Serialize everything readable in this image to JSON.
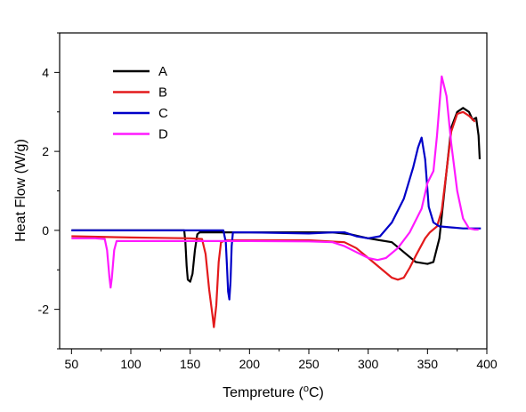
{
  "chart_data": {
    "type": "line",
    "title": "",
    "xlabel_main": "Tempreture (",
    "xlabel_sup": "o",
    "xlabel_unit": "C)",
    "ylabel": "Heat Flow (W/g)",
    "xlim": [
      40,
      400
    ],
    "ylim": [
      -3,
      5
    ],
    "xticks": [
      50,
      100,
      150,
      200,
      250,
      300,
      350,
      400
    ],
    "yticks": [
      -2,
      0,
      2,
      4
    ],
    "grid": false,
    "legend_position": "top-left",
    "series": [
      {
        "name": "A",
        "color": "#000000",
        "points": [
          [
            50,
            0.0
          ],
          [
            100,
            0.0
          ],
          [
            140,
            0.0
          ],
          [
            145,
            0.0
          ],
          [
            146,
            -0.3
          ],
          [
            147,
            -0.9
          ],
          [
            148,
            -1.25
          ],
          [
            150,
            -1.3
          ],
          [
            152,
            -1.1
          ],
          [
            154,
            -0.5
          ],
          [
            156,
            -0.1
          ],
          [
            158,
            -0.05
          ],
          [
            170,
            -0.05
          ],
          [
            200,
            -0.05
          ],
          [
            250,
            -0.05
          ],
          [
            270,
            -0.05
          ],
          [
            285,
            -0.1
          ],
          [
            300,
            -0.2
          ],
          [
            310,
            -0.25
          ],
          [
            320,
            -0.3
          ],
          [
            330,
            -0.55
          ],
          [
            340,
            -0.8
          ],
          [
            350,
            -0.85
          ],
          [
            355,
            -0.8
          ],
          [
            360,
            -0.2
          ],
          [
            365,
            1.2
          ],
          [
            370,
            2.6
          ],
          [
            375,
            3.0
          ],
          [
            380,
            3.1
          ],
          [
            385,
            3.0
          ],
          [
            388,
            2.8
          ],
          [
            391,
            2.85
          ],
          [
            393,
            2.4
          ],
          [
            394,
            1.8
          ]
        ]
      },
      {
        "name": "B",
        "color": "#e31a1c",
        "points": [
          [
            50,
            -0.15
          ],
          [
            100,
            -0.18
          ],
          [
            150,
            -0.2
          ],
          [
            160,
            -0.22
          ],
          [
            163,
            -0.6
          ],
          [
            166,
            -1.5
          ],
          [
            169,
            -2.2
          ],
          [
            170,
            -2.45
          ],
          [
            172,
            -1.9
          ],
          [
            174,
            -0.8
          ],
          [
            176,
            -0.3
          ],
          [
            180,
            -0.25
          ],
          [
            200,
            -0.25
          ],
          [
            250,
            -0.25
          ],
          [
            280,
            -0.3
          ],
          [
            290,
            -0.45
          ],
          [
            300,
            -0.7
          ],
          [
            310,
            -0.95
          ],
          [
            320,
            -1.2
          ],
          [
            325,
            -1.25
          ],
          [
            330,
            -1.2
          ],
          [
            335,
            -0.95
          ],
          [
            340,
            -0.65
          ],
          [
            348,
            -0.2
          ],
          [
            352,
            -0.05
          ],
          [
            358,
            0.1
          ],
          [
            362,
            0.5
          ],
          [
            366,
            1.5
          ],
          [
            370,
            2.5
          ],
          [
            375,
            2.95
          ],
          [
            380,
            3.0
          ],
          [
            385,
            2.9
          ],
          [
            390,
            2.75
          ]
        ]
      },
      {
        "name": "C",
        "color": "#0000c8",
        "points": [
          [
            50,
            0.0
          ],
          [
            100,
            0.0
          ],
          [
            150,
            0.0
          ],
          [
            178,
            0.0
          ],
          [
            180,
            -0.3
          ],
          [
            181,
            -0.9
          ],
          [
            182,
            -1.55
          ],
          [
            183,
            -1.75
          ],
          [
            184,
            -1.3
          ],
          [
            185,
            -0.4
          ],
          [
            186,
            -0.05
          ],
          [
            190,
            -0.05
          ],
          [
            200,
            -0.05
          ],
          [
            250,
            -0.08
          ],
          [
            270,
            -0.05
          ],
          [
            280,
            -0.05
          ],
          [
            290,
            -0.15
          ],
          [
            300,
            -0.2
          ],
          [
            310,
            -0.15
          ],
          [
            320,
            0.2
          ],
          [
            330,
            0.8
          ],
          [
            338,
            1.6
          ],
          [
            342,
            2.1
          ],
          [
            345,
            2.35
          ],
          [
            348,
            1.8
          ],
          [
            351,
            0.6
          ],
          [
            355,
            0.2
          ],
          [
            360,
            0.1
          ],
          [
            380,
            0.05
          ],
          [
            395,
            0.05
          ]
        ]
      },
      {
        "name": "D",
        "color": "#ff1aff",
        "points": [
          [
            50,
            -0.2
          ],
          [
            70,
            -0.2
          ],
          [
            78,
            -0.22
          ],
          [
            80,
            -0.5
          ],
          [
            82,
            -1.2
          ],
          [
            83,
            -1.45
          ],
          [
            84,
            -1.2
          ],
          [
            86,
            -0.5
          ],
          [
            88,
            -0.27
          ],
          [
            100,
            -0.27
          ],
          [
            150,
            -0.27
          ],
          [
            200,
            -0.27
          ],
          [
            250,
            -0.28
          ],
          [
            270,
            -0.3
          ],
          [
            280,
            -0.4
          ],
          [
            290,
            -0.55
          ],
          [
            300,
            -0.7
          ],
          [
            308,
            -0.75
          ],
          [
            315,
            -0.7
          ],
          [
            325,
            -0.45
          ],
          [
            335,
            -0.05
          ],
          [
            345,
            0.55
          ],
          [
            350,
            1.2
          ],
          [
            355,
            1.5
          ],
          [
            358,
            2.4
          ],
          [
            362,
            3.9
          ],
          [
            366,
            3.4
          ],
          [
            370,
            2.2
          ],
          [
            375,
            1.0
          ],
          [
            380,
            0.3
          ],
          [
            385,
            0.05
          ],
          [
            390,
            0.02
          ],
          [
            393,
            0.02
          ]
        ]
      }
    ]
  }
}
